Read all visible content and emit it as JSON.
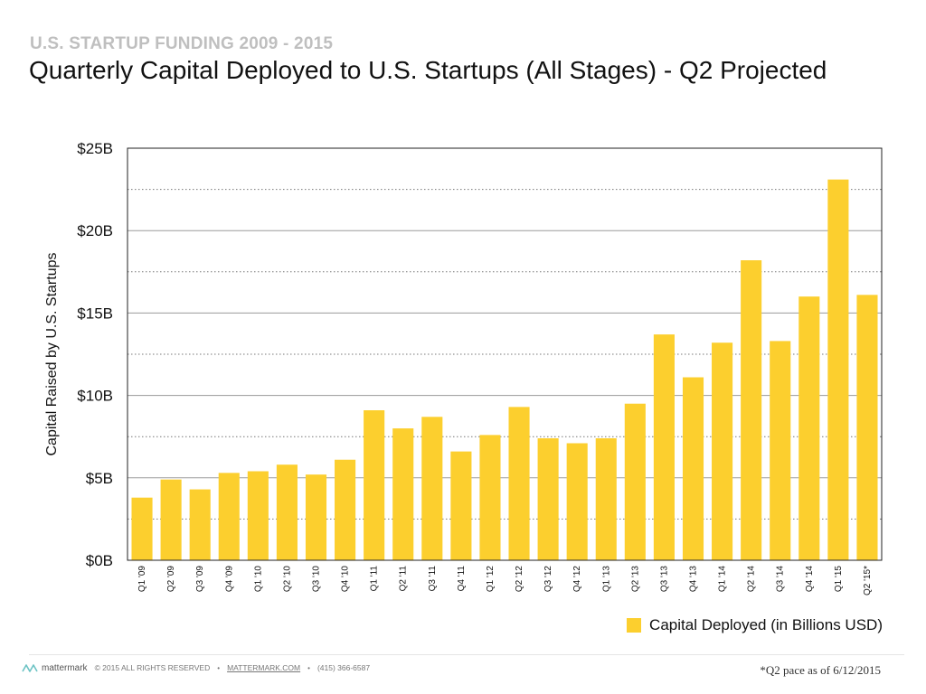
{
  "header": {
    "kicker": "U.S. STARTUP FUNDING 2009 - 2015",
    "title": "Quarterly Capital Deployed to U.S. Startups (All Stages) - Q2 Projected"
  },
  "colors": {
    "bar": "#fccf2e",
    "kicker": "#bfbfbf",
    "brand": "#6cc3c4"
  },
  "chart_data": {
    "type": "bar",
    "title": "Quarterly Capital Deployed to U.S. Startups (All Stages) - Q2 Projected",
    "ylabel": "Capital Raised by U.S. Startups",
    "xlabel": "",
    "ylim": [
      0,
      25
    ],
    "y_ticks": [
      0,
      5,
      10,
      15,
      20,
      25
    ],
    "y_tick_labels": [
      "$0B",
      "$5B",
      "$10B",
      "$15B",
      "$20B",
      "$25B"
    ],
    "minor_gridlines": [
      2.5,
      7.5,
      12.5,
      17.5,
      22.5
    ],
    "grid": true,
    "legend_position": "bottom-right",
    "categories": [
      "Q1 '09",
      "Q2 '09",
      "Q3 '09",
      "Q4 '09",
      "Q1 '10",
      "Q2 '10",
      "Q3 '10",
      "Q4 '10",
      "Q1 '11",
      "Q2 '11",
      "Q3 '11",
      "Q4 '11",
      "Q1 '12",
      "Q2 '12",
      "Q3 '12",
      "Q4 '12",
      "Q1 '13",
      "Q2 '13",
      "Q3 '13",
      "Q4 '13",
      "Q1 '14",
      "Q2 '14",
      "Q3 '14",
      "Q4 '14",
      "Q1 '15",
      "Q2 '15*"
    ],
    "series": [
      {
        "name": "Capital Deployed (in Billions USD)",
        "color": "#fccf2e",
        "values": [
          3.8,
          4.9,
          4.3,
          5.3,
          5.4,
          5.8,
          5.2,
          6.1,
          9.1,
          8.0,
          8.7,
          6.6,
          7.6,
          9.3,
          7.4,
          7.1,
          7.4,
          9.5,
          13.7,
          11.1,
          13.2,
          18.2,
          13.3,
          16.0,
          23.1,
          16.1
        ]
      }
    ]
  },
  "footer": {
    "brand": "mattermark",
    "copyright": "© 2015 ALL RIGHTS RESERVED",
    "url": "MATTERMARK.COM",
    "phone": "(415) 366-6587",
    "separator": "•",
    "pace_note": "*Q2 pace as of 6/12/2015",
    "logo_icon": "mattermark-logo-icon"
  }
}
